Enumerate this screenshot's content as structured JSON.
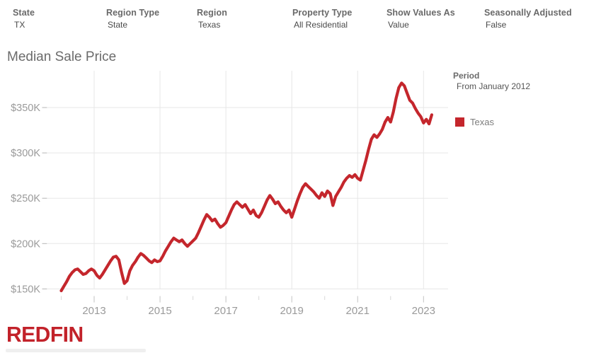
{
  "filters": [
    {
      "label": "State",
      "value": "TX"
    },
    {
      "label": "Region Type",
      "value": "State"
    },
    {
      "label": "Region",
      "value": "Texas"
    },
    {
      "label": "Property Type",
      "value": "All Residential"
    },
    {
      "label": "Show Values As",
      "value": "Value"
    },
    {
      "label": "Seasonally Adjusted",
      "value": "False"
    }
  ],
  "title": "Median Sale Price",
  "legend": {
    "period_label": "Period",
    "period_value": "From January 2012",
    "series_label": "Texas",
    "swatch_color": "#c4262c"
  },
  "logo_text": "REDFIN",
  "colors": {
    "line": "#c4262c",
    "logo_red": "#c2222a",
    "grid": "#e7e7e7",
    "axis_text": "#9a9a9a",
    "tick": "#c2c2c2"
  },
  "chart_data": {
    "type": "line",
    "title": "Median Sale Price",
    "x_unit": "month",
    "x_start": "2012-01",
    "x_end": "2023-04",
    "grid": "on",
    "legend_position": "right",
    "ylim_usd": [
      140000,
      394000
    ],
    "xlim_years": [
      2011.57,
      2023.75
    ],
    "y_ticks": [
      {
        "label": "$150K",
        "value": 150000
      },
      {
        "label": "$200K",
        "value": 200000
      },
      {
        "label": "$250K",
        "value": 250000
      },
      {
        "label": "$300K",
        "value": 300000
      },
      {
        "label": "$350K",
        "value": 350000
      }
    ],
    "x_ticks": [
      {
        "label": "2013",
        "year": 2013
      },
      {
        "label": "2015",
        "year": 2015
      },
      {
        "label": "2017",
        "year": 2017
      },
      {
        "label": "2019",
        "year": 2019
      },
      {
        "label": "2021",
        "year": 2021
      },
      {
        "label": "2023",
        "year": 2023
      }
    ],
    "minor_x_tick_years": [
      2012,
      2014,
      2016,
      2018,
      2020,
      2022
    ],
    "series": [
      {
        "name": "Texas",
        "color": "#c4262c",
        "unit": "USD thousands",
        "values": [
          148,
          153,
          158,
          164,
          168,
          171,
          172,
          169,
          166,
          167,
          170,
          172,
          170,
          165,
          162,
          166,
          171,
          176,
          181,
          185,
          186,
          182,
          168,
          156,
          159,
          170,
          176,
          180,
          185,
          189,
          187,
          184,
          181,
          179,
          182,
          180,
          181,
          186,
          192,
          197,
          202,
          206,
          204,
          202,
          204,
          200,
          197,
          200,
          203,
          206,
          212,
          219,
          226,
          232,
          229,
          225,
          227,
          222,
          218,
          220,
          223,
          230,
          237,
          243,
          246,
          243,
          240,
          243,
          238,
          233,
          237,
          231,
          229,
          234,
          241,
          248,
          253,
          249,
          244,
          246,
          241,
          237,
          234,
          237,
          229,
          238,
          247,
          255,
          262,
          266,
          263,
          260,
          257,
          253,
          250,
          256,
          252,
          258,
          255,
          242,
          252,
          257,
          262,
          268,
          272,
          275,
          273,
          276,
          272,
          270,
          281,
          292,
          304,
          315,
          320,
          317,
          321,
          326,
          334,
          339,
          334,
          345,
          360,
          372,
          377,
          374,
          366,
          358,
          355,
          349,
          344,
          340,
          333,
          337,
          332,
          342
        ]
      }
    ]
  }
}
